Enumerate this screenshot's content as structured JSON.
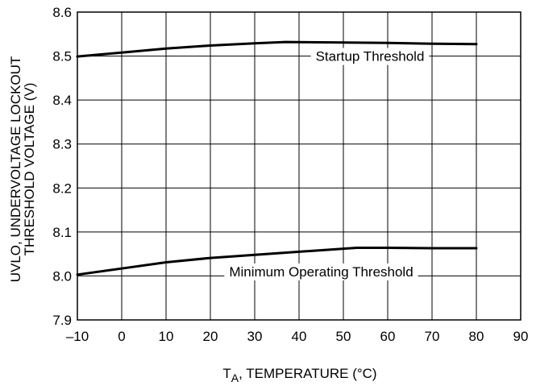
{
  "chart_data": {
    "type": "line",
    "title": "",
    "xlabel": {
      "prefix": "T",
      "sub": "A",
      "rest": ", TEMPERATURE (°C)"
    },
    "ylabel": [
      "UVLO, UNDERVOLTAGE LOCKOUT",
      "THRESHOLD VOLTAGE (V)"
    ],
    "xlim": [
      -10,
      90
    ],
    "ylim": [
      7.9,
      8.6
    ],
    "xticks": [
      -10,
      0,
      10,
      20,
      30,
      40,
      50,
      60,
      70,
      80,
      90
    ],
    "xtick_labels": [
      "–10",
      "0",
      "10",
      "20",
      "30",
      "40",
      "50",
      "60",
      "70",
      "80",
      "90"
    ],
    "yticks": [
      7.9,
      8.0,
      8.1,
      8.2,
      8.3,
      8.4,
      8.5,
      8.6
    ],
    "ytick_labels": [
      "7.9",
      "8.0",
      "8.1",
      "8.2",
      "8.3",
      "8.4",
      "8.5",
      "8.6"
    ],
    "grid": true,
    "series": [
      {
        "name": "Startup Threshold",
        "x": [
          -10,
          0,
          10,
          20,
          30,
          37,
          50,
          60,
          70,
          80
        ],
        "y": [
          8.499,
          8.508,
          8.517,
          8.524,
          8.529,
          8.532,
          8.531,
          8.53,
          8.528,
          8.527
        ]
      },
      {
        "name": "Minimum Operating Threshold",
        "x": [
          -10,
          0,
          10,
          20,
          30,
          40,
          53,
          60,
          70,
          80
        ],
        "y": [
          8.003,
          8.017,
          8.031,
          8.041,
          8.048,
          8.055,
          8.064,
          8.064,
          8.063,
          8.063
        ]
      }
    ],
    "annotations": [
      {
        "text": "Startup Threshold",
        "series": 0,
        "x": 56,
        "y": 8.5
      },
      {
        "text": "Minimum Operating Threshold",
        "series": 1,
        "x": 45,
        "y": 8.01
      }
    ]
  }
}
